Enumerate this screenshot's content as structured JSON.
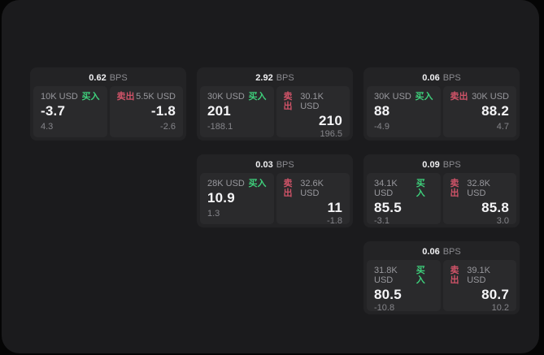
{
  "theme": {
    "page_bg": "#050505",
    "panel_bg": "#1b1b1d",
    "card_bg": "#232325",
    "tile_bg": "#2a2a2c",
    "text_primary": "#f5f5f7",
    "text_secondary": "#98989d",
    "buy_color": "#3ecf7b",
    "sell_color": "#d05368"
  },
  "labels": {
    "bps_suffix": "BPS",
    "buy": "买入",
    "sell": "卖出"
  },
  "cards": [
    {
      "bps": "0.62",
      "col": 1,
      "row": 1,
      "buy": {
        "amount": "10K USD",
        "price": "-3.7",
        "delta": "4.3"
      },
      "sell": {
        "amount": "5.5K USD",
        "price": "-1.8",
        "delta": "-2.6"
      }
    },
    {
      "bps": "2.92",
      "col": 2,
      "row": 1,
      "buy": {
        "amount": "30K USD",
        "price": "201",
        "delta": "-188.1"
      },
      "sell": {
        "amount": "30.1K USD",
        "price": "210",
        "delta": "196.5"
      }
    },
    {
      "bps": "0.06",
      "col": 3,
      "row": 1,
      "buy": {
        "amount": "30K USD",
        "price": "88",
        "delta": "-4.9"
      },
      "sell": {
        "amount": "30K USD",
        "price": "88.2",
        "delta": "4.7"
      }
    },
    {
      "bps": "0.03",
      "col": 2,
      "row": 2,
      "buy": {
        "amount": "28K USD",
        "price": "10.9",
        "delta": "1.3"
      },
      "sell": {
        "amount": "32.6K USD",
        "price": "11",
        "delta": "-1.8"
      }
    },
    {
      "bps": "0.09",
      "col": 3,
      "row": 2,
      "buy": {
        "amount": "34.1K USD",
        "price": "85.5",
        "delta": "-3.1"
      },
      "sell": {
        "amount": "32.8K USD",
        "price": "85.8",
        "delta": "3.0"
      }
    },
    {
      "bps": "0.06",
      "col": 3,
      "row": 3,
      "buy": {
        "amount": "31.8K USD",
        "price": "80.5",
        "delta": "-10.8"
      },
      "sell": {
        "amount": "39.1K USD",
        "price": "80.7",
        "delta": "10.2"
      }
    }
  ]
}
